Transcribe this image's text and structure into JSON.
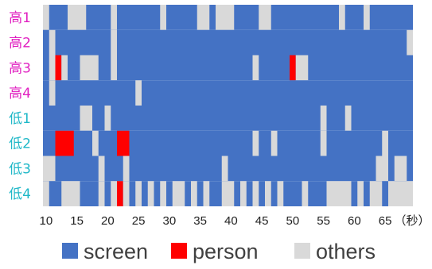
{
  "chart_data": {
    "type": "heatmap",
    "title": "",
    "x_unit_label": "（秒）",
    "x_ticks": [
      10,
      15,
      20,
      25,
      30,
      35,
      40,
      45,
      50,
      55,
      60,
      65
    ],
    "x_range": [
      9.5,
      69.5
    ],
    "categories": [
      "screen",
      "person",
      "others"
    ],
    "colors": {
      "screen": "#4472C4",
      "person": "#FF0000",
      "others": "#D9D9D9"
    },
    "rows": [
      {
        "label": "高1",
        "group_color": "#E020C0",
        "segments": [
          {
            "start": 9.5,
            "end": 10.5,
            "cat": "others"
          },
          {
            "start": 13.5,
            "end": 16.5,
            "cat": "others"
          },
          {
            "start": 20.5,
            "end": 21.5,
            "cat": "others"
          },
          {
            "start": 28.5,
            "end": 29.5,
            "cat": "others"
          },
          {
            "start": 34.5,
            "end": 36.5,
            "cat": "others"
          },
          {
            "start": 37.5,
            "end": 40.5,
            "cat": "others"
          },
          {
            "start": 44.5,
            "end": 46.5,
            "cat": "others"
          },
          {
            "start": 57.5,
            "end": 58.5,
            "cat": "others"
          },
          {
            "start": 61.5,
            "end": 62.5,
            "cat": "others"
          }
        ]
      },
      {
        "label": "高2",
        "group_color": "#E020C0",
        "segments": [
          {
            "start": 10.5,
            "end": 11.5,
            "cat": "others"
          },
          {
            "start": 20.5,
            "end": 21.5,
            "cat": "others"
          },
          {
            "start": 68.5,
            "end": 69.5,
            "cat": "others"
          }
        ]
      },
      {
        "label": "高3",
        "group_color": "#E020C0",
        "segments": [
          {
            "start": 10.5,
            "end": 11.5,
            "cat": "others"
          },
          {
            "start": 11.5,
            "end": 12.5,
            "cat": "person"
          },
          {
            "start": 12.5,
            "end": 13.5,
            "cat": "others"
          },
          {
            "start": 15.5,
            "end": 18.5,
            "cat": "others"
          },
          {
            "start": 20.5,
            "end": 21.5,
            "cat": "others"
          },
          {
            "start": 43.5,
            "end": 44.5,
            "cat": "others"
          },
          {
            "start": 49.5,
            "end": 50.5,
            "cat": "person"
          },
          {
            "start": 50.5,
            "end": 52.5,
            "cat": "others"
          }
        ]
      },
      {
        "label": "高4",
        "group_color": "#E020C0",
        "segments": [
          {
            "start": 10.5,
            "end": 11.5,
            "cat": "others"
          },
          {
            "start": 24.5,
            "end": 25.5,
            "cat": "others"
          }
        ]
      },
      {
        "label": "低1",
        "group_color": "#20B8C8",
        "segments": [
          {
            "start": 15.5,
            "end": 17.5,
            "cat": "others"
          },
          {
            "start": 19.5,
            "end": 20.5,
            "cat": "others"
          },
          {
            "start": 54.5,
            "end": 55.5,
            "cat": "others"
          },
          {
            "start": 58.5,
            "end": 59.5,
            "cat": "others"
          }
        ]
      },
      {
        "label": "低2",
        "group_color": "#20B8C8",
        "segments": [
          {
            "start": 11.5,
            "end": 14.5,
            "cat": "person"
          },
          {
            "start": 17.5,
            "end": 18.5,
            "cat": "others"
          },
          {
            "start": 21.5,
            "end": 23.5,
            "cat": "person"
          },
          {
            "start": 43.5,
            "end": 44.5,
            "cat": "others"
          },
          {
            "start": 46.5,
            "end": 47.5,
            "cat": "others"
          },
          {
            "start": 54.5,
            "end": 55.5,
            "cat": "others"
          },
          {
            "start": 64.5,
            "end": 65.5,
            "cat": "others"
          }
        ]
      },
      {
        "label": "低3",
        "group_color": "#20B8C8",
        "segments": [
          {
            "start": 9.5,
            "end": 11.5,
            "cat": "others"
          },
          {
            "start": 18.5,
            "end": 19.5,
            "cat": "others"
          },
          {
            "start": 22.5,
            "end": 23.5,
            "cat": "others"
          },
          {
            "start": 38.5,
            "end": 39.5,
            "cat": "others"
          },
          {
            "start": 63.5,
            "end": 65.5,
            "cat": "others"
          },
          {
            "start": 66.5,
            "end": 68.5,
            "cat": "others"
          }
        ]
      },
      {
        "label": "低4",
        "group_color": "#20B8C8",
        "segments": [
          {
            "start": 9.5,
            "end": 10.5,
            "cat": "others"
          },
          {
            "start": 12.5,
            "end": 15.5,
            "cat": "others"
          },
          {
            "start": 18.5,
            "end": 19.5,
            "cat": "others"
          },
          {
            "start": 20.5,
            "end": 21.5,
            "cat": "others"
          },
          {
            "start": 21.5,
            "end": 22.5,
            "cat": "person"
          },
          {
            "start": 22.5,
            "end": 23.5,
            "cat": "others"
          },
          {
            "start": 24.5,
            "end": 25.5,
            "cat": "others"
          },
          {
            "start": 26.5,
            "end": 27.5,
            "cat": "others"
          },
          {
            "start": 28.5,
            "end": 29.5,
            "cat": "others"
          },
          {
            "start": 30.5,
            "end": 32.5,
            "cat": "others"
          },
          {
            "start": 33.5,
            "end": 34.5,
            "cat": "others"
          },
          {
            "start": 35.5,
            "end": 36.5,
            "cat": "others"
          },
          {
            "start": 38.5,
            "end": 40.5,
            "cat": "others"
          },
          {
            "start": 41.5,
            "end": 42.5,
            "cat": "others"
          },
          {
            "start": 43.5,
            "end": 44.5,
            "cat": "others"
          },
          {
            "start": 45.5,
            "end": 46.5,
            "cat": "others"
          },
          {
            "start": 47.5,
            "end": 48.5,
            "cat": "others"
          },
          {
            "start": 51.5,
            "end": 52.5,
            "cat": "others"
          },
          {
            "start": 55.5,
            "end": 59.5,
            "cat": "others"
          },
          {
            "start": 60.5,
            "end": 61.5,
            "cat": "others"
          },
          {
            "start": 62.5,
            "end": 64.5,
            "cat": "others"
          },
          {
            "start": 65.5,
            "end": 69.5,
            "cat": "others"
          }
        ]
      }
    ],
    "legend": [
      {
        "label": "screen",
        "cat": "screen"
      },
      {
        "label": "person",
        "cat": "person"
      },
      {
        "label": "others",
        "cat": "others"
      }
    ],
    "legend_position": "bottom"
  }
}
